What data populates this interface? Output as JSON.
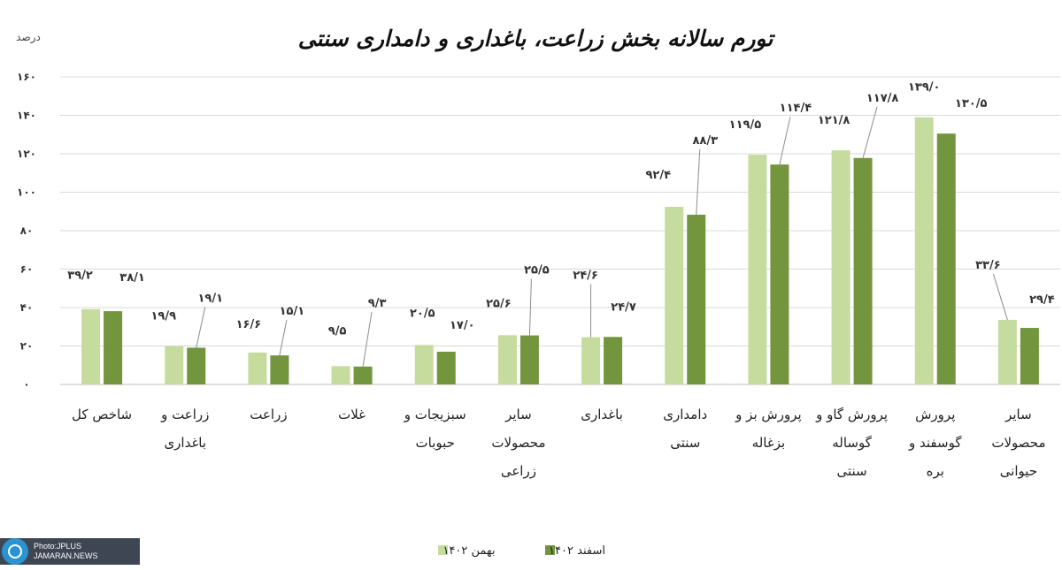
{
  "chart_data": {
    "type": "bar",
    "title": "تورم سالانه بخش زراعت، باغداری و دامداری سنتی",
    "ylabel": "درصد",
    "ylim": [
      0,
      160
    ],
    "yticks": [
      "۰",
      "۲۰",
      "۴۰",
      "۶۰",
      "۸۰",
      "۱۰۰",
      "۱۲۰",
      "۱۴۰",
      "۱۶۰"
    ],
    "grid": true,
    "legend_position": "bottom",
    "categories": [
      [
        "شاخص کل"
      ],
      [
        "زراعت و",
        "باغداری"
      ],
      [
        "زراعت"
      ],
      [
        "غلات"
      ],
      [
        "سبزیجات و",
        "حبوبات"
      ],
      [
        "سایر",
        "محصولات",
        "زراعی"
      ],
      [
        "باغداری"
      ],
      [
        "دامداری",
        "سنتی"
      ],
      [
        "پرورش بز و",
        "بزغاله"
      ],
      [
        "پرورش گاو و",
        "گوساله",
        "سنتی"
      ],
      [
        "پرورش",
        "گوسفند و",
        "بره"
      ],
      [
        "سایر",
        "محصولات",
        "حیوانی"
      ]
    ],
    "series": [
      {
        "name": "بهمن ۱۴۰۲",
        "color": "#c5dc9e",
        "values": [
          39.2,
          19.9,
          16.6,
          9.5,
          20.5,
          25.6,
          24.6,
          92.4,
          119.5,
          121.8,
          139.0,
          33.6
        ],
        "labels": [
          "۳۹/۲",
          "۱۹/۹",
          "۱۶/۶",
          "۹/۵",
          "۲۰/۵",
          "۲۵/۶",
          "۲۴/۶",
          "۹۲/۴",
          "۱۱۹/۵",
          "۱۲۱/۸",
          "۱۳۹/۰",
          "۳۳/۶"
        ]
      },
      {
        "name": "اسفند ۱۴۰۲",
        "color": "#73953d",
        "values": [
          38.1,
          19.1,
          15.1,
          9.3,
          17.0,
          25.5,
          24.7,
          88.3,
          114.4,
          117.8,
          130.5,
          29.4
        ],
        "labels": [
          "۳۸/۱",
          "۱۹/۱",
          "۱۵/۱",
          "۹/۳",
          "۱۷/۰",
          "۲۵/۵",
          "۲۴/۷",
          "۸۸/۳",
          "۱۱۴/۴",
          "۱۱۷/۸",
          "۱۳۰/۵",
          "۲۹/۴"
        ]
      }
    ]
  },
  "watermark": {
    "line1": "Photo:JPLUS",
    "line2": "JAMARAN.NEWS"
  }
}
